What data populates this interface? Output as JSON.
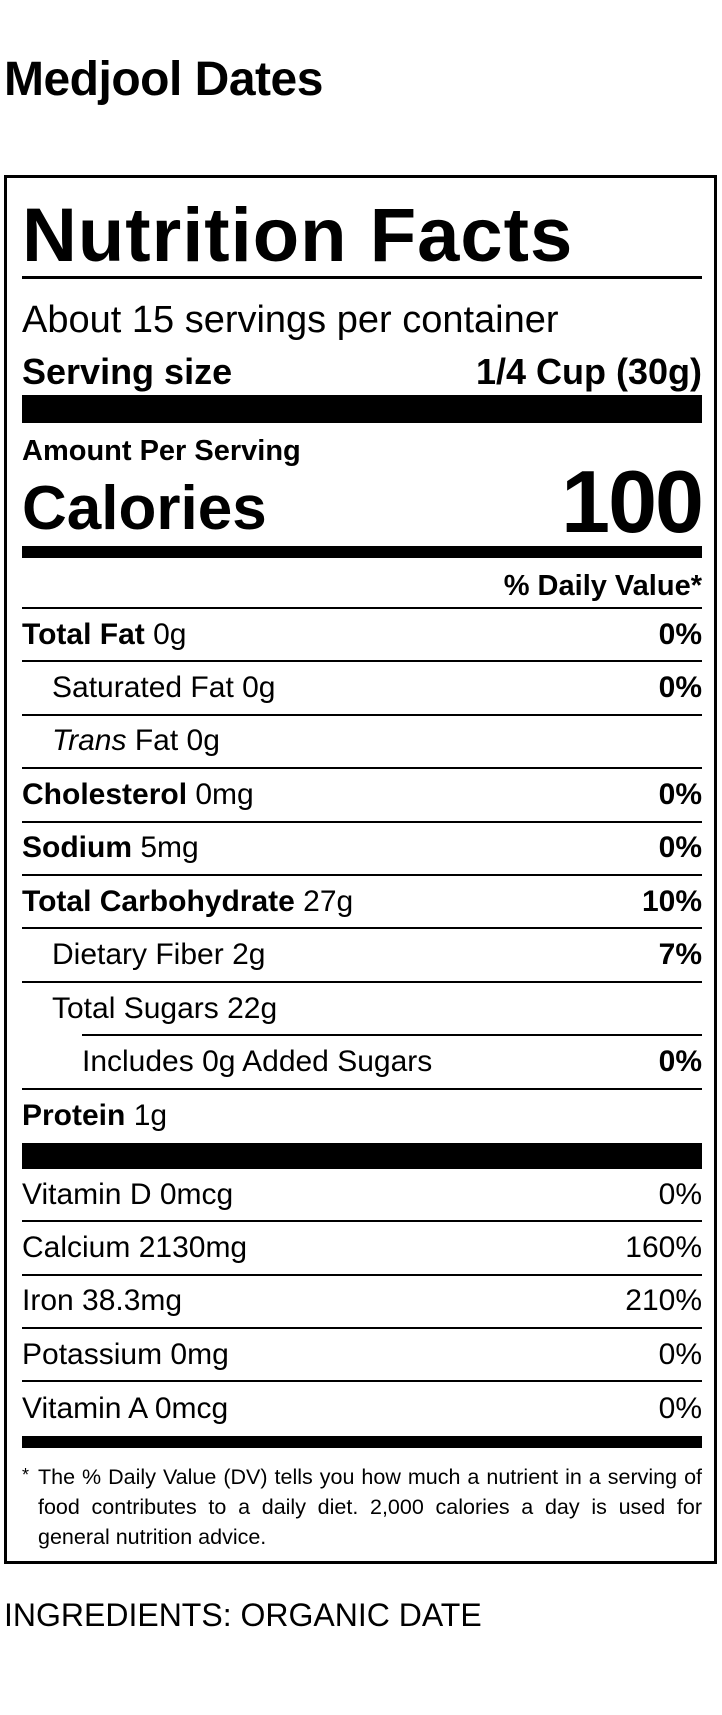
{
  "product_name": "Medjool Dates",
  "label": {
    "title": "Nutrition Facts",
    "servings_per_container": "About 15 servings per container",
    "serving_size_label": "Serving size",
    "serving_size_value": "1/4 Cup (30g)",
    "amount_per_serving": "Amount Per Serving",
    "calories_label": "Calories",
    "calories_value": "100",
    "daily_value_header": "% Daily Value*",
    "nutrients": [
      {
        "name": "Total Fat",
        "amount": "0g",
        "dv": "0%"
      },
      {
        "name": "Saturated Fat",
        "amount": "0g",
        "dv": "0%"
      },
      {
        "name": "Trans",
        "name_suffix": "Fat",
        "amount": "0g",
        "dv": ""
      },
      {
        "name": "Cholesterol",
        "amount": "0mg",
        "dv": "0%"
      },
      {
        "name": "Sodium",
        "amount": "5mg",
        "dv": "0%"
      },
      {
        "name": "Total Carbohydrate",
        "amount": "27g",
        "dv": "10%"
      },
      {
        "name": "Dietary Fiber",
        "amount": "2g",
        "dv": "7%"
      },
      {
        "name": "Total Sugars",
        "amount": "22g",
        "dv": ""
      },
      {
        "name": "Includes 0g Added Sugars",
        "amount": "",
        "dv": "0%"
      },
      {
        "name": "Protein",
        "amount": "1g",
        "dv": ""
      }
    ],
    "vitamins": [
      {
        "name": "Vitamin D",
        "amount": "0mcg",
        "dv": "0%"
      },
      {
        "name": "Calcium",
        "amount": "2130mg",
        "dv": "160%"
      },
      {
        "name": "Iron",
        "amount": "38.3mg",
        "dv": "210%"
      },
      {
        "name": "Potassium",
        "amount": "0mg",
        "dv": "0%"
      },
      {
        "name": "Vitamin A",
        "amount": "0mcg",
        "dv": "0%"
      }
    ],
    "footnote_star": "*",
    "footnote": "The % Daily Value (DV) tells you how much a nutrient in a serving of food contributes to a daily diet. 2,000 calories a day is used for general nutrition advice."
  },
  "ingredients": "INGREDIENTS: ORGANIC DATE"
}
